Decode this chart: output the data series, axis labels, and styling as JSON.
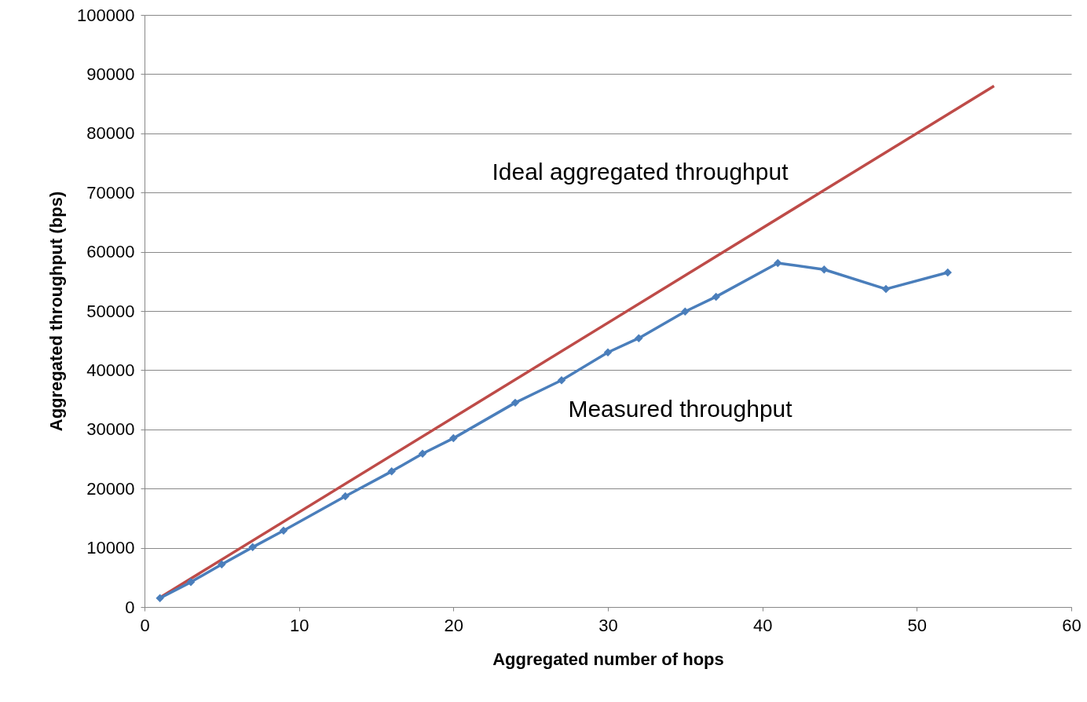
{
  "chart_data": {
    "type": "line",
    "xlabel": "Aggregated number of hops",
    "ylabel": "Aggregated throughput  (bps)",
    "xlim": [
      0,
      60
    ],
    "xticks": [
      0,
      10,
      20,
      30,
      40,
      50,
      60
    ],
    "ylim": [
      0,
      100000
    ],
    "yticks": [
      0,
      10000,
      20000,
      30000,
      40000,
      50000,
      60000,
      70000,
      80000,
      90000,
      100000
    ],
    "grid": "y",
    "series": [
      {
        "color": "#be4b48",
        "marker": "none",
        "x": [
          1,
          55
        ],
        "values": [
          1600,
          88000
        ]
      },
      {
        "color": "#4a7ebb",
        "marker": "diamond",
        "x": [
          1,
          3,
          5,
          7,
          9,
          13,
          16,
          18,
          20,
          24,
          27,
          30,
          32,
          35,
          37,
          41,
          44,
          48,
          52
        ],
        "values": [
          1500,
          4200,
          7200,
          10100,
          12900,
          18700,
          22900,
          25900,
          28500,
          34500,
          38300,
          43000,
          45400,
          49900,
          52400,
          58100,
          57000,
          53700,
          56500
        ]
      }
    ],
    "annotations": [
      "Ideal aggregated throughput",
      "Measured throughput"
    ]
  }
}
